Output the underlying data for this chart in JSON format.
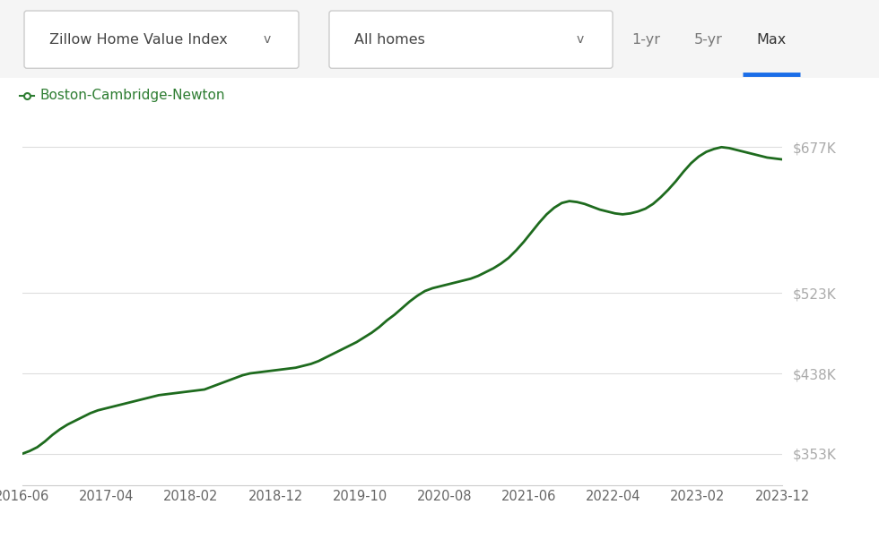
{
  "background_color": "#ffffff",
  "line_color": "#1e6b1e",
  "line_width": 2.0,
  "legend_label": "Boston-Cambridge-Newton",
  "legend_color": "#2e7d32",
  "x_tick_labels": [
    "2016-06",
    "2017-04",
    "2018-02",
    "2018-12",
    "2019-10",
    "2020-08",
    "2021-06",
    "2022-04",
    "2023-02",
    "2023-12"
  ],
  "y_tick_labels": [
    "$353K",
    "$438K",
    "$523K",
    "$677K"
  ],
  "y_tick_values": [
    353000,
    438000,
    523000,
    677000
  ],
  "ylim": [
    320000,
    710000
  ],
  "grid_color": "#dddddd",
  "header_border": "#cccccc",
  "dropdown1_text": "Zillow Home Value Index",
  "dropdown2_text": "All homes",
  "btn_1yr": "1-yr",
  "btn_5yr": "5-yr",
  "btn_max": "Max",
  "active_btn_color": "#1a6de8",
  "series_x": [
    0,
    1,
    2,
    3,
    4,
    5,
    6,
    7,
    8,
    9,
    10,
    11,
    12,
    13,
    14,
    15,
    16,
    17,
    18,
    19,
    20,
    21,
    22,
    23,
    24,
    25,
    26,
    27,
    28,
    29,
    30,
    31,
    32,
    33,
    34,
    35,
    36,
    37,
    38,
    39,
    40,
    41,
    42,
    43,
    44,
    45,
    46,
    47,
    48,
    49,
    50,
    51,
    52,
    53,
    54,
    55,
    56,
    57,
    58,
    59,
    60,
    61,
    62,
    63,
    64,
    65,
    66,
    67,
    68,
    69,
    70,
    71,
    72,
    73,
    74,
    75,
    76,
    77,
    78,
    79,
    80,
    81,
    82,
    83,
    84,
    85,
    86,
    87,
    88,
    89,
    90,
    91,
    92,
    93,
    94,
    95,
    96,
    97,
    98,
    99,
    100
  ],
  "series_y": [
    353000,
    356000,
    360000,
    366000,
    373000,
    379000,
    384000,
    388000,
    392000,
    396000,
    399000,
    401000,
    403000,
    405000,
    407000,
    409000,
    411000,
    413000,
    415000,
    416000,
    417000,
    418000,
    419000,
    420000,
    421000,
    424000,
    427000,
    430000,
    433000,
    436000,
    438000,
    439000,
    440000,
    441000,
    442000,
    443000,
    444000,
    446000,
    448000,
    451000,
    455000,
    459000,
    463000,
    467000,
    471000,
    476000,
    481000,
    487000,
    494000,
    500000,
    507000,
    514000,
    520000,
    525000,
    528000,
    530000,
    532000,
    534000,
    536000,
    538000,
    541000,
    545000,
    549000,
    554000,
    560000,
    568000,
    577000,
    587000,
    597000,
    606000,
    613000,
    618000,
    620000,
    619000,
    617000,
    614000,
    611000,
    609000,
    607000,
    606000,
    607000,
    609000,
    612000,
    617000,
    624000,
    632000,
    641000,
    651000,
    660000,
    667000,
    672000,
    675000,
    677000,
    676000,
    674000,
    672000,
    670000,
    668000,
    666000,
    665000,
    664000
  ]
}
